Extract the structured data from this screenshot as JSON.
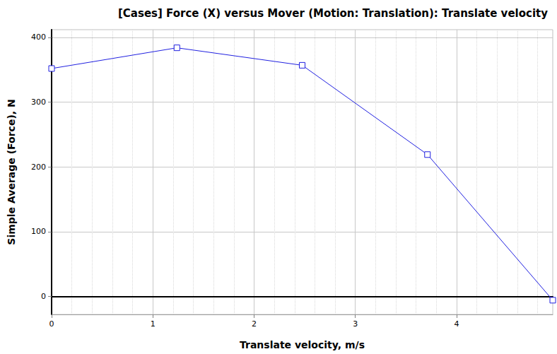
{
  "chart_data": {
    "type": "line",
    "title": "[Cases] Force (X) versus Mover (Motion: Translation): Translate velocity",
    "x_label": "Translate velocity, m/s",
    "y_label": "Simple Average (Force), N",
    "x": [
      0,
      1.2375,
      2.475,
      3.7125,
      4.95
    ],
    "values": [
      352,
      384,
      357,
      219,
      -6
    ],
    "color": "#2020e0",
    "marker": "square",
    "xlim": [
      0,
      4.95
    ],
    "xticks": [
      0,
      1,
      2,
      3,
      4
    ],
    "ylim": [
      -28,
      412
    ],
    "yticks": [
      0,
      100,
      200,
      300,
      400
    ],
    "grid": true
  }
}
